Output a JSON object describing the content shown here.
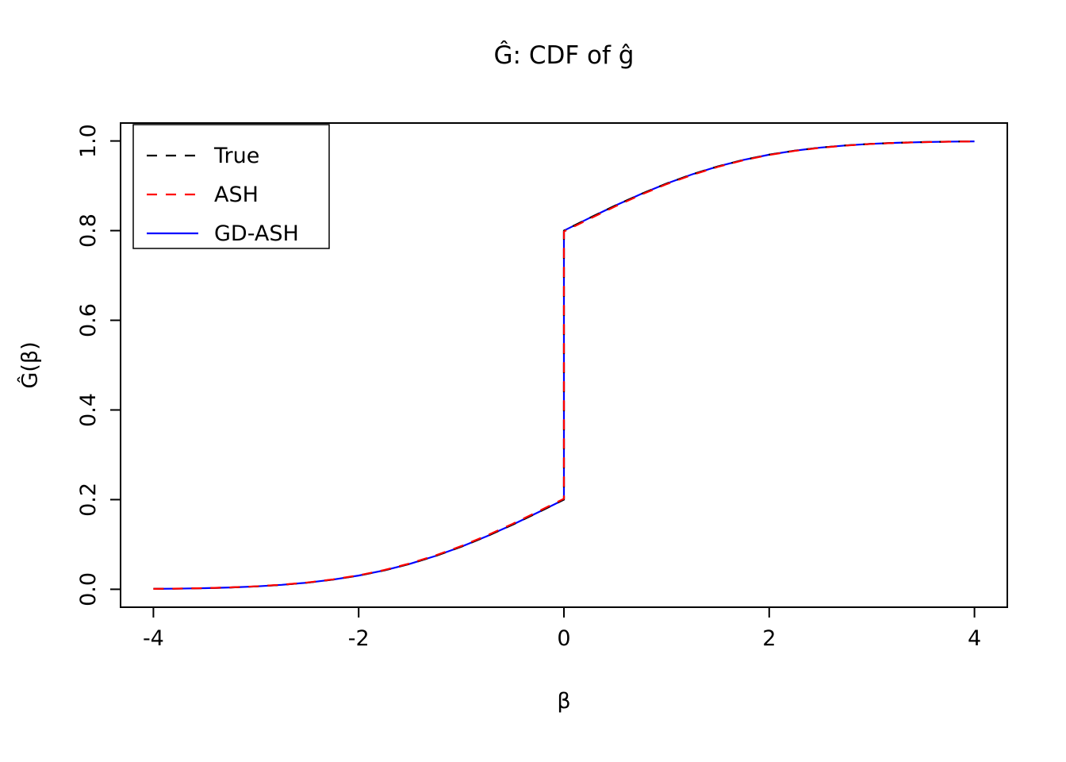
{
  "title": "Ĝ: CDF of ĝ",
  "x_axis": {
    "label": "β",
    "ticks": [
      -4,
      -2,
      0,
      2,
      4
    ],
    "tick_labels": [
      "-4",
      "-2",
      "0",
      "2",
      "4"
    ],
    "lim": [
      -4.32,
      4.32
    ]
  },
  "y_axis": {
    "label": "Ĝ(β)",
    "ticks": [
      0.0,
      0.2,
      0.4,
      0.6,
      0.8,
      1.0
    ],
    "tick_labels": [
      "0.0",
      "0.2",
      "0.4",
      "0.6",
      "0.8",
      "1.0"
    ],
    "lim": [
      -0.04,
      1.04
    ]
  },
  "legend": {
    "items": [
      {
        "label": "True",
        "color": "#000000",
        "dash": true
      },
      {
        "label": "ASH",
        "color": "#ff0000",
        "dash": true
      },
      {
        "label": "GD-ASH",
        "color": "#0000ff",
        "dash": false
      }
    ]
  },
  "chart_data": {
    "type": "line",
    "title": "Ĝ: CDF of ĝ",
    "xlabel": "β",
    "ylabel": "Ĝ(β)",
    "xlim": [
      -4.32,
      4.32
    ],
    "ylim": [
      -0.04,
      1.04
    ],
    "grid": false,
    "legend_position": "top-left",
    "note": "Step CDF with point mass at 0: jump from 0.2 to 0.8 at x = 0; duplicate x=0 entries encode the jump",
    "x": [
      -4,
      -3.75,
      -3.5,
      -3.25,
      -3,
      -2.75,
      -2.5,
      -2.25,
      -2,
      -1.75,
      -1.5,
      -1.25,
      -1,
      -0.75,
      -0.5,
      -0.25,
      0,
      0,
      0.25,
      0.5,
      0.75,
      1,
      1.25,
      1.5,
      1.75,
      2,
      2.25,
      2.5,
      2.75,
      3,
      3.25,
      3.5,
      3.75,
      4
    ],
    "series": [
      {
        "name": "True",
        "color": "#000000",
        "style": "dashed",
        "values": [
          0.001,
          0.0015,
          0.0025,
          0.004,
          0.0064,
          0.0099,
          0.0148,
          0.0216,
          0.0306,
          0.0422,
          0.0568,
          0.0744,
          0.095,
          0.1184,
          0.1442,
          0.1717,
          0.2,
          0.8,
          0.8283,
          0.8558,
          0.8816,
          0.905,
          0.9256,
          0.9432,
          0.9578,
          0.9694,
          0.9784,
          0.9852,
          0.9901,
          0.9936,
          0.996,
          0.9975,
          0.9985,
          0.9991
        ]
      },
      {
        "name": "ASH",
        "color": "#ff0000",
        "style": "dashed",
        "values": [
          0.001,
          0.0016,
          0.0026,
          0.0042,
          0.0066,
          0.0102,
          0.0152,
          0.0221,
          0.0312,
          0.043,
          0.0578,
          0.0756,
          0.0964,
          0.12,
          0.146,
          0.1737,
          0.202,
          0.798,
          0.8263,
          0.854,
          0.88,
          0.9036,
          0.9244,
          0.9422,
          0.957,
          0.9688,
          0.9779,
          0.9848,
          0.9898,
          0.9934,
          0.9958,
          0.9974,
          0.9984,
          0.999
        ]
      },
      {
        "name": "GD-ASH",
        "color": "#0000ff",
        "style": "solid",
        "values": [
          0.001,
          0.0015,
          0.0025,
          0.004,
          0.0064,
          0.0099,
          0.0148,
          0.0216,
          0.0306,
          0.0422,
          0.0568,
          0.0744,
          0.095,
          0.1184,
          0.1442,
          0.1717,
          0.2,
          0.8,
          0.8283,
          0.8558,
          0.8816,
          0.905,
          0.9256,
          0.9432,
          0.9578,
          0.9694,
          0.9784,
          0.9852,
          0.9901,
          0.9936,
          0.996,
          0.9975,
          0.9985,
          0.9991
        ]
      }
    ]
  }
}
